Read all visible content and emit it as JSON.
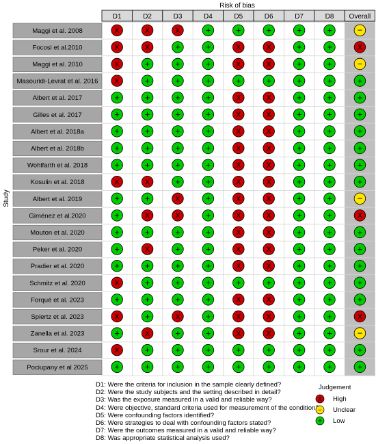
{
  "chart_data": {
    "type": "table",
    "title": "Risk of bias",
    "ylabel": "Study",
    "columns": [
      "D1",
      "D2",
      "D3",
      "D4",
      "D5",
      "D6",
      "D7",
      "D8",
      "Overall"
    ],
    "rows": [
      {
        "study": "Maggi et al. 2008",
        "judgements": [
          "high",
          "high",
          "high",
          "low",
          "low",
          "low",
          "low",
          "low",
          "unclear"
        ]
      },
      {
        "study": "Focosi et al.2010",
        "judgements": [
          "high",
          "high",
          "low",
          "low",
          "high",
          "high",
          "low",
          "low",
          "high"
        ]
      },
      {
        "study": "Maggi et al. 2010",
        "judgements": [
          "high",
          "low",
          "low",
          "low",
          "high",
          "high",
          "low",
          "low",
          "unclear"
        ]
      },
      {
        "study": "Masouridi-Levrat et al. 2016",
        "judgements": [
          "high",
          "low",
          "low",
          "low",
          "low",
          "low",
          "low",
          "low",
          "low"
        ]
      },
      {
        "study": "Albert et al. 2017",
        "judgements": [
          "low",
          "low",
          "low",
          "low",
          "high",
          "high",
          "low",
          "low",
          "low"
        ]
      },
      {
        "study": "Gilles et al. 2017",
        "judgements": [
          "low",
          "low",
          "low",
          "low",
          "high",
          "high",
          "low",
          "low",
          "low"
        ]
      },
      {
        "study": "Albert et al. 2018a",
        "judgements": [
          "low",
          "low",
          "low",
          "low",
          "high",
          "high",
          "low",
          "low",
          "low"
        ]
      },
      {
        "study": "Albert et al. 2018b",
        "judgements": [
          "low",
          "low",
          "low",
          "low",
          "high",
          "high",
          "low",
          "low",
          "low"
        ]
      },
      {
        "study": "Wohlfarth et al. 2018",
        "judgements": [
          "low",
          "low",
          "low",
          "low",
          "high",
          "high",
          "low",
          "low",
          "low"
        ]
      },
      {
        "study": "Kosulin et al. 2018",
        "judgements": [
          "high",
          "high",
          "low",
          "low",
          "high",
          "high",
          "low",
          "low",
          "low"
        ]
      },
      {
        "study": "Albert et al. 2019",
        "judgements": [
          "low",
          "low",
          "high",
          "low",
          "high",
          "high",
          "low",
          "low",
          "unclear"
        ]
      },
      {
        "study": "Giménez et al.2020",
        "judgements": [
          "low",
          "high",
          "high",
          "low",
          "high",
          "high",
          "low",
          "low",
          "high"
        ]
      },
      {
        "study": "Mouton et al. 2020",
        "judgements": [
          "low",
          "low",
          "low",
          "low",
          "high",
          "high",
          "low",
          "low",
          "low"
        ]
      },
      {
        "study": "Peker et al. 2020",
        "judgements": [
          "low",
          "high",
          "low",
          "low",
          "high",
          "high",
          "low",
          "low",
          "low"
        ]
      },
      {
        "study": "Pradier et al. 2020",
        "judgements": [
          "low",
          "low",
          "low",
          "low",
          "high",
          "high",
          "low",
          "low",
          "low"
        ]
      },
      {
        "study": "Schmitz et al. 2020",
        "judgements": [
          "high",
          "low",
          "low",
          "low",
          "low",
          "low",
          "low",
          "low",
          "low"
        ]
      },
      {
        "study": "Forqué et al. 2023",
        "judgements": [
          "low",
          "low",
          "low",
          "low",
          "high",
          "high",
          "low",
          "low",
          "low"
        ]
      },
      {
        "study": "Spiertz et al. 2023",
        "judgements": [
          "high",
          "low",
          "high",
          "low",
          "high",
          "high",
          "low",
          "low",
          "high"
        ]
      },
      {
        "study": "Zanella et al. 2023",
        "judgements": [
          "low",
          "high",
          "low",
          "low",
          "high",
          "high",
          "low",
          "low",
          "unclear"
        ]
      },
      {
        "study": "Srour et al. 2024",
        "judgements": [
          "high",
          "low",
          "low",
          "low",
          "low",
          "low",
          "low",
          "low",
          "low"
        ]
      },
      {
        "study": "Pociupany et al 2025",
        "judgements": [
          "low",
          "low",
          "low",
          "low",
          "low",
          "low",
          "low",
          "low",
          "low"
        ]
      }
    ],
    "symbols": {
      "high": "X",
      "unclear": "−",
      "low": "+"
    },
    "colors": {
      "high": "#cc0000",
      "unclear": "#ffe500",
      "low": "#00cc00",
      "row_label_bg": "#a6a6a6",
      "header_bg": "#d9d9d9",
      "overall_bg": "#bfbfbf"
    },
    "domain_descriptions": [
      "D1: Were the criteria for inclusion in the sample clearly defined?",
      "D2: Were the study subjects and the setting described in detail?",
      "D3: Was the exposure measured in a valid and reliable way?",
      "D4: Were objective, standard criteria used for measurement of the condition?",
      "D5: Were confounding factors identified?",
      "D6: Were strategies to deal with confounding factors stated?",
      "D7: Were the outcomes measured in a valid and reliable way?",
      "D8: Was appropriate statistical analysis used?"
    ],
    "legend": {
      "title": "Judgement",
      "items": [
        {
          "key": "high",
          "label": "High"
        },
        {
          "key": "unclear",
          "label": "Unclear"
        },
        {
          "key": "low",
          "label": "Low"
        }
      ]
    }
  }
}
